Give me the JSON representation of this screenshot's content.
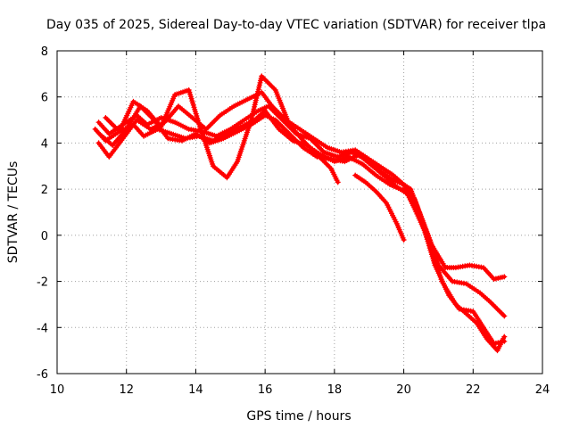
{
  "chart_data": {
    "type": "scatter",
    "title": "Day 035 of 2025, Sidereal Day-to-day VTEC variation (SDTVAR) for receiver tlpa",
    "xlabel": "GPS time / hours",
    "ylabel": "SDTVAR / TECUs",
    "xlim": [
      10,
      24
    ],
    "ylim": [
      -6,
      8
    ],
    "xticks": [
      10,
      12,
      14,
      16,
      18,
      20,
      22,
      24
    ],
    "yticks": [
      -6,
      -4,
      -2,
      0,
      2,
      4,
      6,
      8
    ],
    "grid": true,
    "marker": "+",
    "color": "#ff0000",
    "series": [
      {
        "name": "track-1",
        "x": [
          11.1,
          11.4,
          11.8,
          12.2,
          12.5,
          12.9,
          13.3,
          13.7,
          14.1,
          14.5,
          14.9,
          15.3,
          15.7,
          16.0,
          16.4,
          16.8,
          17.2,
          17.6,
          18.0,
          18.4,
          18.8,
          19.2,
          19.6,
          19.9,
          20.1,
          20.3,
          20.5,
          20.8,
          21.2,
          21.5,
          21.9,
          22.3,
          22.6,
          22.9
        ],
        "y": [
          4.6,
          4.1,
          4.5,
          4.8,
          4.3,
          4.6,
          4.4,
          4.2,
          4.3,
          4.1,
          4.4,
          4.7,
          5.0,
          5.4,
          4.6,
          4.1,
          3.9,
          3.5,
          3.2,
          3.4,
          3.1,
          2.6,
          2.2,
          2.0,
          1.9,
          1.6,
          0.8,
          -0.4,
          -1.4,
          -1.4,
          -1.3,
          -1.4,
          -1.9,
          -1.8
        ]
      },
      {
        "name": "track-2",
        "x": [
          11.2,
          11.5,
          11.9,
          12.3,
          12.6,
          13.0,
          13.4,
          13.8,
          14.2,
          14.6,
          15.0,
          15.4,
          15.8,
          16.1,
          16.5,
          16.9,
          17.3,
          17.7,
          18.1,
          18.5,
          18.9,
          19.3,
          19.7,
          20.0,
          20.2,
          20.4,
          20.7,
          21.0,
          21.4,
          21.8,
          22.2,
          22.5,
          22.9
        ],
        "y": [
          4.9,
          4.4,
          4.8,
          5.2,
          4.8,
          5.1,
          4.9,
          4.6,
          4.5,
          4.3,
          4.6,
          5.0,
          5.4,
          5.6,
          5.0,
          4.4,
          4.2,
          3.6,
          3.4,
          3.6,
          3.3,
          2.8,
          2.4,
          2.2,
          2.0,
          1.2,
          0.0,
          -1.3,
          -2.0,
          -2.1,
          -2.5,
          -2.9,
          -3.5
        ]
      },
      {
        "name": "track-3",
        "x": [
          11.3,
          11.6,
          12.0,
          12.4,
          12.8,
          13.2,
          13.6,
          14.0,
          14.4,
          14.8,
          15.2,
          15.6,
          16.0,
          16.3,
          16.7,
          17.1,
          17.5,
          17.9,
          18.3,
          18.7,
          19.1,
          19.5,
          19.8,
          20.1,
          20.3,
          20.6,
          20.9,
          21.3,
          21.6,
          22.0,
          22.3,
          22.6,
          22.9
        ],
        "y": [
          4.3,
          3.9,
          4.6,
          5.6,
          5.0,
          4.2,
          4.1,
          4.4,
          4.0,
          4.2,
          4.5,
          4.8,
          5.2,
          5.0,
          4.4,
          3.8,
          3.4,
          3.3,
          3.2,
          3.5,
          3.0,
          2.5,
          2.1,
          1.8,
          1.2,
          0.2,
          -1.3,
          -2.6,
          -3.2,
          -3.3,
          -4.0,
          -4.7,
          -4.6
        ]
      },
      {
        "name": "track-4",
        "x": [
          11.2,
          11.5,
          11.9,
          12.3,
          12.7,
          13.1,
          13.5,
          13.9,
          14.3,
          14.7,
          15.1,
          15.5,
          15.9,
          16.2,
          16.6,
          17.0,
          17.4,
          17.8,
          18.2,
          18.6,
          19.0,
          19.4,
          19.7,
          20.0,
          20.2,
          20.5,
          20.8,
          21.1,
          21.5,
          21.8,
          22.1,
          22.4,
          22.7,
          22.9
        ],
        "y": [
          4.0,
          3.4,
          4.2,
          5.0,
          4.6,
          4.9,
          5.6,
          5.1,
          4.6,
          5.2,
          5.6,
          5.9,
          6.2,
          5.6,
          5.0,
          4.6,
          4.2,
          3.8,
          3.6,
          3.7,
          3.3,
          2.9,
          2.6,
          2.2,
          1.6,
          0.6,
          -0.6,
          -2.0,
          -3.0,
          -3.4,
          -3.8,
          -4.5,
          -5.0,
          -4.4
        ]
      },
      {
        "name": "track-5",
        "x": [
          11.4,
          11.8,
          12.2,
          12.6,
          13.0,
          13.4,
          13.8,
          14.1,
          14.5,
          14.9,
          15.2,
          15.6,
          15.9,
          16.3,
          16.7,
          17.1,
          17.5,
          17.9,
          18.1
        ],
        "y": [
          5.1,
          4.5,
          5.8,
          5.4,
          4.7,
          6.1,
          6.3,
          4.8,
          3.0,
          2.5,
          3.2,
          5.0,
          6.9,
          6.3,
          4.8,
          4.1,
          3.5,
          2.9,
          2.3
        ]
      },
      {
        "name": "track-6",
        "x": [
          18.6,
          18.9,
          19.2,
          19.5,
          19.8,
          20.0
        ],
        "y": [
          2.6,
          2.3,
          1.9,
          1.4,
          0.5,
          -0.2
        ]
      }
    ]
  }
}
